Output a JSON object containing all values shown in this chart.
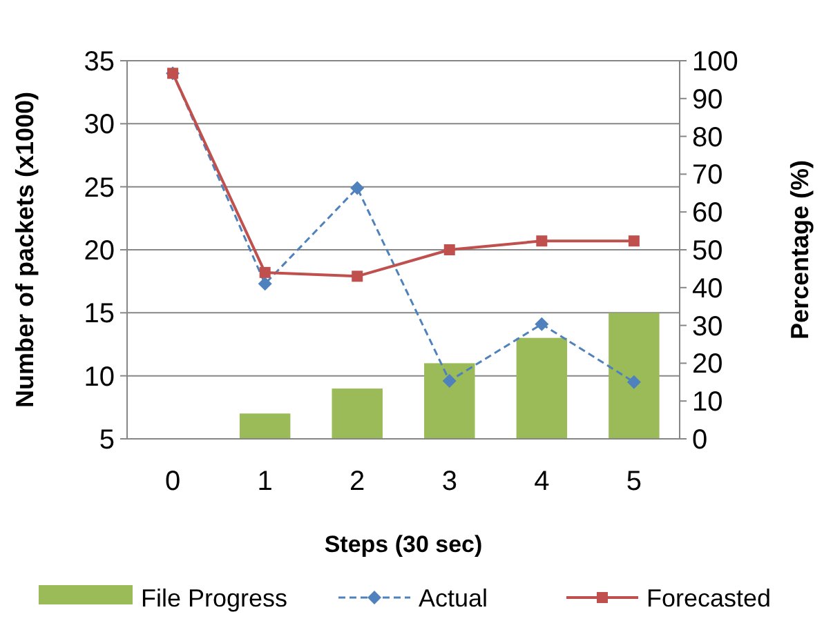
{
  "chart_data": {
    "type": "bar",
    "xlabel": "Steps (30 sec)",
    "ylabel": "Number of packets (x1000)",
    "y2label": "Percentage (%)",
    "categories": [
      "0",
      "1",
      "2",
      "3",
      "4",
      "5"
    ],
    "series": [
      {
        "name": "File Progress",
        "axis": "y2",
        "color": "#9bbb59",
        "values": [
          0,
          6.7,
          13.3,
          20,
          26.7,
          33.3
        ]
      },
      {
        "name": "Actual",
        "type": "line",
        "color": "#4f81bd",
        "marker": "diamond",
        "line_style": "dashed",
        "values": [
          34,
          17.3,
          24.9,
          9.6,
          14.1,
          9.5
        ]
      },
      {
        "name": "Forecasted",
        "type": "line",
        "color": "#c0504d",
        "marker": "square",
        "line_style": "solid",
        "values": [
          34,
          18.2,
          17.9,
          20,
          20.7,
          20.7
        ]
      }
    ],
    "ylim": [
      5,
      35
    ],
    "yticks": [
      5,
      10,
      15,
      20,
      25,
      30,
      35
    ],
    "y2lim": [
      0,
      100
    ],
    "y2ticks": [
      0,
      10,
      20,
      30,
      40,
      50,
      60,
      70,
      80,
      90,
      100
    ],
    "grid": "y",
    "legend": "bottom"
  }
}
